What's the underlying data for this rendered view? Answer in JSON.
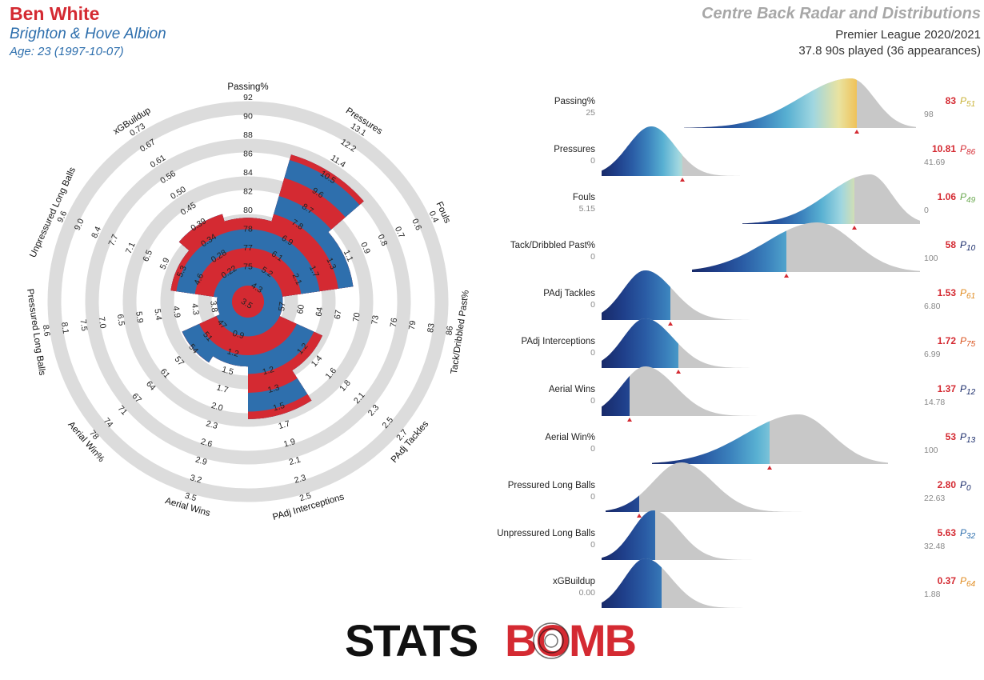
{
  "header": {
    "player_name": "Ben White",
    "team": "Brighton & Hove Albion",
    "age": "Age: 23 (1997-10-07)",
    "title": "Centre Back Radar and Distributions",
    "league": "Premier League 2020/2021",
    "played": "37.8 90s played (36 appearances)"
  },
  "colors": {
    "red": "#d42a32",
    "blue": "#2e6fad",
    "ring_grey": "#dcdcdc",
    "dist_grey": "#c8c8c8",
    "dark_navy": "#182a69"
  },
  "chart_data": [
    {
      "type": "radar",
      "axes": [
        {
          "label": "Passing%",
          "ticks": [
            "75",
            "77",
            "78",
            "80",
            "82",
            "84",
            "86",
            "88",
            "90",
            "92"
          ],
          "value": 83
        },
        {
          "label": "Pressures",
          "ticks": [
            "3.5",
            "4.3",
            "5.2",
            "6.1",
            "6.9",
            "7.8",
            "8.7",
            "9.6",
            "10.5",
            "11.4",
            "12.2",
            "13.1"
          ],
          "value": 10.81
        },
        {
          "label": "Fouls",
          "ticks": [
            "2.1",
            "1.7",
            "1.3",
            "1.1",
            "0.9",
            "0.8",
            "0.7",
            "0.6",
            "0.4"
          ],
          "value": 1.06
        },
        {
          "label": "Tack/Dribbled Past%",
          "ticks": [
            "57",
            "60",
            "64",
            "67",
            "70",
            "73",
            "76",
            "79",
            "83",
            "86"
          ],
          "value": 58
        },
        {
          "label": "PAdj Tackles",
          "ticks": [
            "1.2",
            "1.4",
            "1.6",
            "1.8",
            "2.1",
            "2.3",
            "2.5",
            "2.7"
          ],
          "value": 1.53
        },
        {
          "label": "PAdj Interceptions",
          "ticks": [
            "1.2",
            "1.3",
            "1.5",
            "1.7",
            "1.9",
            "2.1",
            "2.3",
            "2.5"
          ],
          "value": 1.72
        },
        {
          "label": "Aerial Wins",
          "ticks": [
            "0.9",
            "1.2",
            "1.5",
            "1.7",
            "2.0",
            "2.3",
            "2.6",
            "2.9",
            "3.2",
            "3.5"
          ],
          "value": 1.37
        },
        {
          "label": "Aerial Win%",
          "ticks": [
            "47",
            "51",
            "54",
            "57",
            "61",
            "64",
            "67",
            "71",
            "74",
            "78"
          ],
          "value": 53
        },
        {
          "label": "Pressured Long Balls",
          "ticks": [
            "3.8",
            "4.3",
            "4.9",
            "5.4",
            "5.9",
            "6.5",
            "7.0",
            "7.5",
            "8.1",
            "8.6"
          ],
          "value": 2.8
        },
        {
          "label": "Unpressured Long Balls",
          "ticks": [
            "4.6",
            "5.3",
            "5.9",
            "6.5",
            "7.1",
            "7.7",
            "8.4",
            "9.0",
            "9.6"
          ],
          "value": 5.63
        },
        {
          "label": "xGBuildup",
          "ticks": [
            "0.22",
            "0.28",
            "0.34",
            "0.39",
            "0.45",
            "0.50",
            "0.56",
            "0.61",
            "0.67",
            "0.73"
          ],
          "value": 0.37
        }
      ],
      "inner_ring_ticks": [
        "0.22",
        "0.9",
        "0.8",
        "0.7",
        "1.0",
        "1.2",
        "1.4",
        "1.6",
        "5.2",
        "6.1",
        "4.6"
      ]
    },
    {
      "type": "area",
      "title": "Centre Back Radar and Distributions",
      "metrics": [
        {
          "label": "Passing%",
          "min": "25",
          "max": "98",
          "value": "83",
          "percentile": "51",
          "pct_color": "#c9b236"
        },
        {
          "label": "Pressures",
          "min": "0",
          "max": "41.69",
          "value": "10.81",
          "percentile": "86",
          "pct_color": "#d42a32"
        },
        {
          "label": "Fouls",
          "min": "5.15",
          "max": "0",
          "value": "1.06",
          "percentile": "49",
          "pct_color": "#6aa84f"
        },
        {
          "label": "Tack/Dribbled Past%",
          "min": "0",
          "max": "100",
          "value": "58",
          "percentile": "10",
          "pct_color": "#182a69"
        },
        {
          "label": "PAdj Tackles",
          "min": "0",
          "max": "6.80",
          "value": "1.53",
          "percentile": "61",
          "pct_color": "#e08a1e"
        },
        {
          "label": "PAdj Interceptions",
          "min": "0",
          "max": "6.99",
          "value": "1.72",
          "percentile": "75",
          "pct_color": "#d9531e"
        },
        {
          "label": "Aerial Wins",
          "min": "0",
          "max": "14.78",
          "value": "1.37",
          "percentile": "12",
          "pct_color": "#182a69"
        },
        {
          "label": "Aerial Win%",
          "min": "0",
          "max": "100",
          "value": "53",
          "percentile": "13",
          "pct_color": "#182a69"
        },
        {
          "label": "Pressured Long Balls",
          "min": "0",
          "max": "22.63",
          "value": "2.80",
          "percentile": "0",
          "pct_color": "#182a69"
        },
        {
          "label": "Unpressured Long Balls",
          "min": "0",
          "max": "32.48",
          "value": "5.63",
          "percentile": "32",
          "pct_color": "#2e6fad"
        },
        {
          "label": "xGBuildup",
          "min": "0.00",
          "max": "1.88",
          "value": "0.37",
          "percentile": "64",
          "pct_color": "#e08a1e"
        }
      ]
    }
  ],
  "logo": {
    "part1": "STATS",
    "part2": "BOMB"
  }
}
